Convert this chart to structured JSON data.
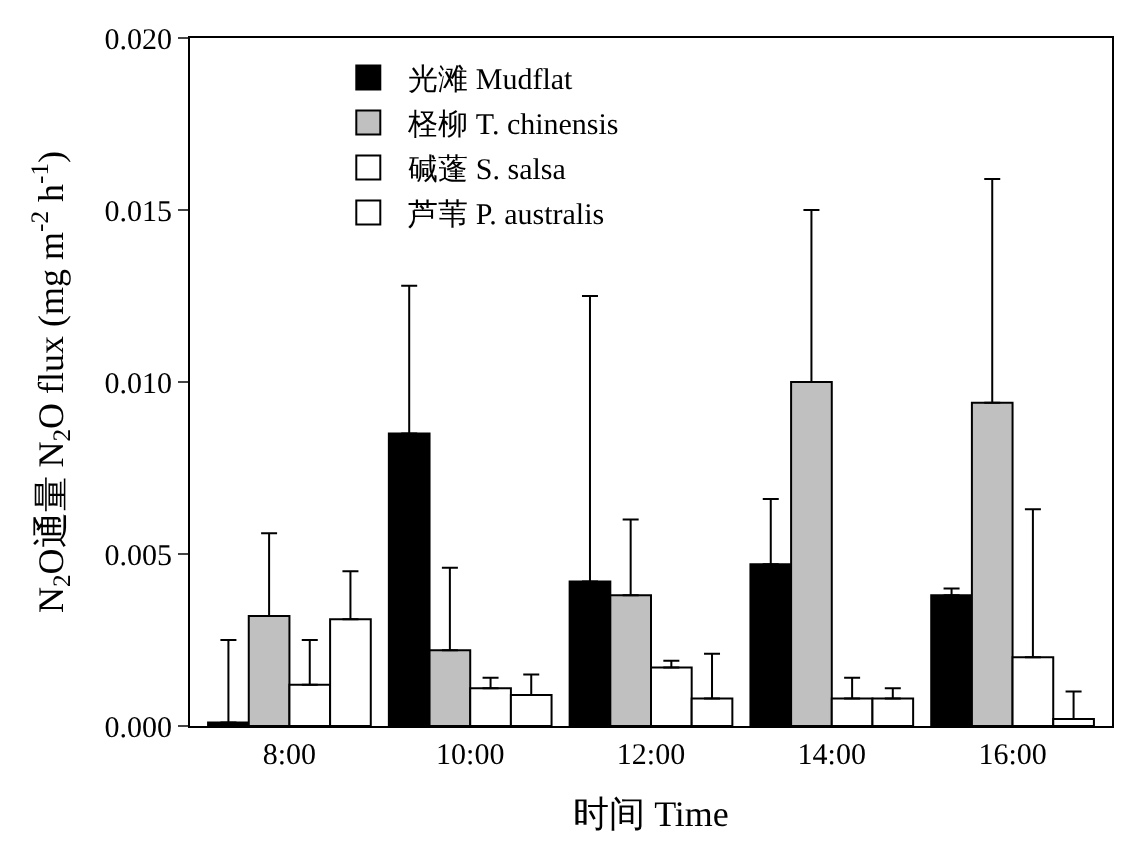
{
  "chart_data": {
    "type": "bar",
    "xlabel": "时间 Time",
    "ylabel": "N$_{2}$O通量 N$_{2}$O flux (mg m$^{-2}$ h$^{-1}$)",
    "categories": [
      "8:00",
      "10:00",
      "12:00",
      "14:00",
      "16:00"
    ],
    "series": [
      {
        "name": "光滩 Mudflat",
        "color": "#000000",
        "values": [
          0.0001,
          0.0085,
          0.0042,
          0.0047,
          0.0038
        ],
        "errors": [
          [
            0.0001,
            0.0025
          ],
          [
            0.0085,
            0.0128
          ],
          [
            0.0042,
            0.0125
          ],
          [
            0.0047,
            0.0066
          ],
          [
            0.0038,
            0.004
          ]
        ]
      },
      {
        "name": "柽柳 T. chinensis",
        "color": "#c0c0c0",
        "values": [
          0.0032,
          0.0022,
          0.0038,
          0.01,
          0.0094
        ],
        "errors": [
          [
            0.0032,
            0.0056
          ],
          [
            0.0022,
            0.0046
          ],
          [
            0.0038,
            0.006
          ],
          [
            0.01,
            0.015
          ],
          [
            0.0094,
            0.0159
          ]
        ]
      },
      {
        "name": "碱蓬 S. salsa",
        "color": "#ffffff",
        "values": [
          0.0012,
          0.0011,
          0.0017,
          0.0008,
          0.002
        ],
        "errors": [
          [
            0.0012,
            0.0025
          ],
          [
            0.0011,
            0.0014
          ],
          [
            0.0017,
            0.0019
          ],
          [
            0.0008,
            0.0014
          ],
          [
            0.002,
            0.0063
          ]
        ]
      },
      {
        "name": "芦苇 P. australis",
        "color": "#ffffff",
        "values": [
          0.0031,
          0.0009,
          0.0008,
          0.0008,
          0.0002
        ],
        "errors": [
          [
            0.0031,
            0.0045
          ],
          [
            0.0009,
            0.0015
          ],
          [
            0.0008,
            0.0021
          ],
          [
            0.0008,
            0.0011
          ],
          [
            0.0002,
            0.001
          ]
        ]
      }
    ],
    "ylim": [
      0,
      0.02
    ],
    "yticks": [
      {
        "value": 0,
        "label": "0.000"
      },
      {
        "value": 0.005,
        "label": "0.005"
      },
      {
        "value": 0.01,
        "label": "0.010"
      },
      {
        "value": 0.015,
        "label": "0.015"
      },
      {
        "value": 0.02,
        "label": "0.020"
      }
    ],
    "legend": "top left"
  }
}
